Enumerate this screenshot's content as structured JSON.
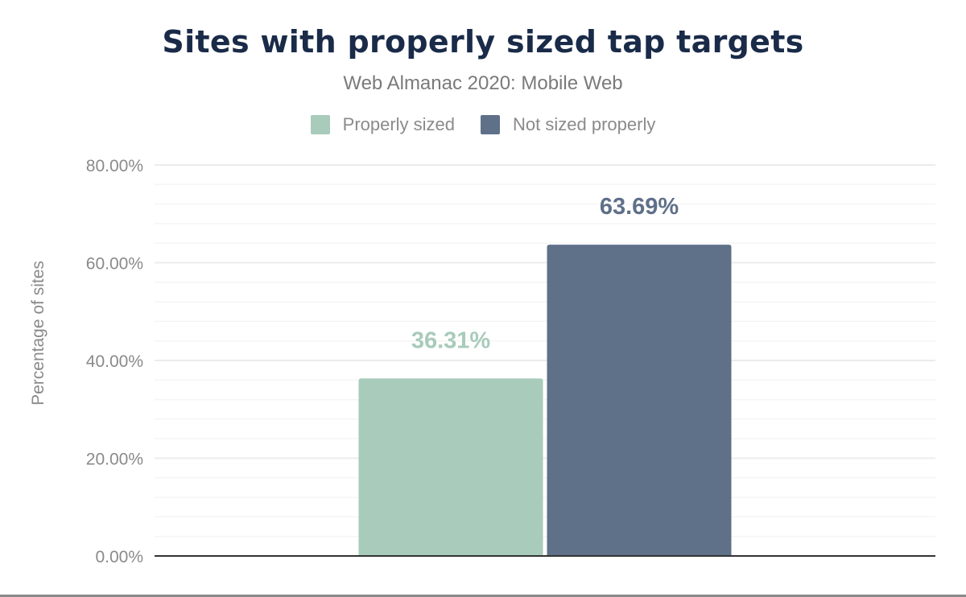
{
  "chart_data": {
    "type": "bar",
    "title": "Sites with properly sized tap targets",
    "subtitle": "Web Almanac 2020: Mobile Web",
    "xlabel": "",
    "ylabel": "Percentage of sites",
    "ylim": [
      0,
      80
    ],
    "yticks": [
      "0.00%",
      "20.00%",
      "40.00%",
      "60.00%",
      "80.00%"
    ],
    "grid": true,
    "legend_placement": "top",
    "series": [
      {
        "name": "Properly sized",
        "values": [
          36.31
        ],
        "label": "36.31%",
        "color": "#a8cbbb"
      },
      {
        "name": "Not sized properly",
        "values": [
          63.69
        ],
        "label": "63.69%",
        "color": "#5f7089"
      }
    ]
  }
}
